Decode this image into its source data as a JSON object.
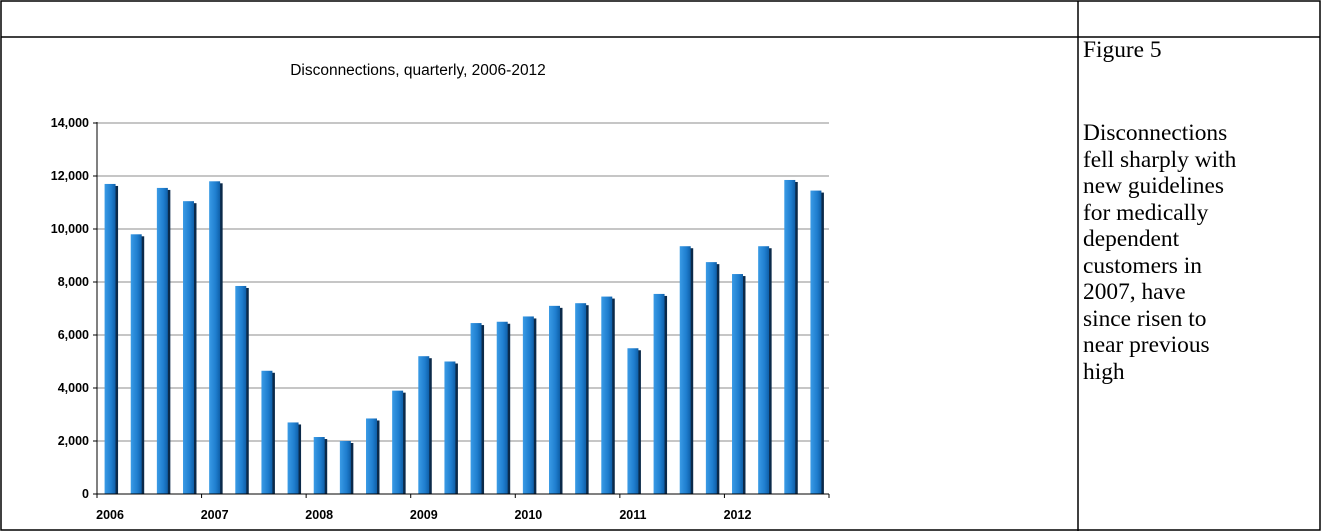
{
  "chart_data": {
    "type": "bar",
    "title": "Disconnections, quarterly, 2006-2012",
    "xlabel": "",
    "ylabel": "",
    "ylim": [
      0,
      14000
    ],
    "yticks": [
      "0",
      "2,000",
      "4,000",
      "6,000",
      "8,000",
      "10,000",
      "12,000",
      "14,000"
    ],
    "xticks": [
      "2006",
      "2007",
      "2008",
      "2009",
      "2010",
      "2011",
      "2012"
    ],
    "grid": true,
    "legend": "none",
    "bar_color": "#1f7ecf",
    "categories": [
      "2006 Q1",
      "2006 Q2",
      "2006 Q3",
      "2006 Q4",
      "2007 Q1",
      "2007 Q2",
      "2007 Q3",
      "2007 Q4",
      "2008 Q1",
      "2008 Q2",
      "2008 Q3",
      "2008 Q4",
      "2009 Q1",
      "2009 Q2",
      "2009 Q3",
      "2009 Q4",
      "2010 Q1",
      "2010 Q2",
      "2010 Q3",
      "2010 Q4",
      "2011 Q1",
      "2011 Q2",
      "2011 Q3",
      "2011 Q4",
      "2012 Q1",
      "2012 Q2",
      "2012 Q3",
      "2012 Q4"
    ],
    "values": [
      11700,
      9800,
      11550,
      11050,
      11800,
      7850,
      4650,
      2700,
      2150,
      2000,
      2850,
      3900,
      5200,
      5000,
      6450,
      6500,
      6700,
      7100,
      7200,
      7450,
      5500,
      7550,
      9350,
      8750,
      8300,
      9350,
      11850,
      11450
    ]
  },
  "caption": {
    "figure_label": "Figure 5",
    "lines": [
      "Disconnections",
      "fell sharply with",
      "new guidelines",
      "for medically",
      "dependent",
      "customers in",
      "2007, have",
      "since risen to",
      "near previous",
      "high"
    ]
  }
}
